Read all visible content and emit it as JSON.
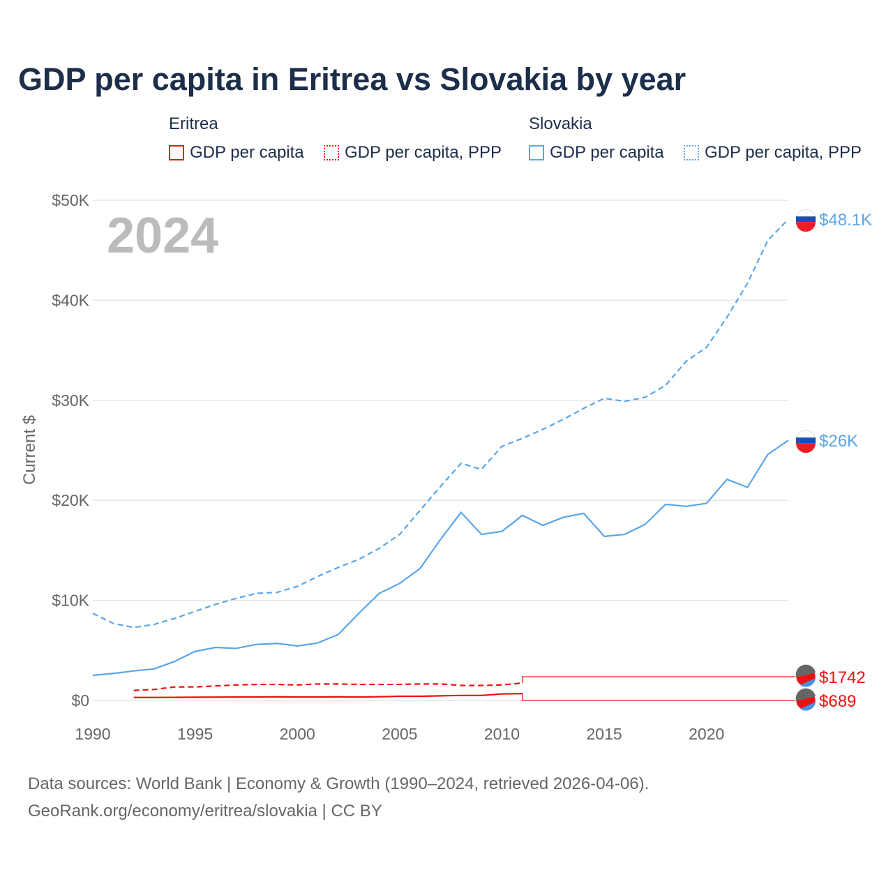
{
  "chart_data": {
    "type": "line",
    "title": "GDP per capita in Eritrea vs Slovakia by year",
    "ylabel": "Current $",
    "xlim": [
      1990,
      2024
    ],
    "ylim": [
      0,
      50000
    ],
    "xticks": [
      "1990",
      "1995",
      "2000",
      "2005",
      "2010",
      "2015",
      "2020"
    ],
    "yticks": [
      "$0",
      "$10K",
      "$20K",
      "$30K",
      "$40K",
      "$50K"
    ],
    "year_label": "2024",
    "legend": {
      "groups": [
        {
          "name": "Eritrea",
          "items": [
            "GDP per capita",
            "GDP per capita, PPP"
          ]
        },
        {
          "name": "Slovakia",
          "items": [
            "GDP per capita",
            "GDP per capita, PPP"
          ]
        }
      ]
    },
    "series": [
      {
        "name": "Slovakia GDP per capita",
        "color": "#5aa5e8",
        "dash": false,
        "start": 1990,
        "values": [
          2500,
          2700,
          2950,
          3150,
          3900,
          4900,
          5300,
          5200,
          5600,
          5700,
          5450,
          5750,
          6600,
          8700,
          10700,
          11700,
          13200,
          16100,
          18800,
          16600,
          16900,
          18500,
          17500,
          18300,
          18700,
          16400,
          16600,
          17600,
          19600,
          19400,
          19700,
          22100,
          21300,
          24600,
          26000
        ],
        "end_label": "$26K"
      },
      {
        "name": "Slovakia GDP per capita, PPP",
        "color": "#5aa5e8",
        "dash": true,
        "start": 1990,
        "values": [
          8700,
          7700,
          7300,
          7600,
          8200,
          8900,
          9600,
          10200,
          10700,
          10800,
          11400,
          12400,
          13300,
          14100,
          15200,
          16600,
          19000,
          21400,
          23700,
          23100,
          25400,
          26200,
          27100,
          28100,
          29200,
          30200,
          29900,
          30300,
          31500,
          33900,
          35300,
          38300,
          41700,
          46000,
          48100
        ],
        "end_label": "$48.1K"
      },
      {
        "name": "Eritrea GDP per capita",
        "color": "#ee1111",
        "dash": false,
        "start": 1992,
        "values": [
          300,
          300,
          310,
          320,
          330,
          340,
          350,
          360,
          350,
          350,
          360,
          340,
          370,
          420,
          420,
          460,
          500,
          500,
          650,
          689
        ],
        "end_label": "$689"
      },
      {
        "name": "Eritrea GDP per capita, PPP",
        "color": "#ee1111",
        "dash": true,
        "start": 1992,
        "values": [
          1000,
          1100,
          1350,
          1350,
          1450,
          1550,
          1600,
          1600,
          1550,
          1650,
          1650,
          1600,
          1600,
          1600,
          1650,
          1650,
          1500,
          1500,
          1550,
          1742
        ],
        "end_label": "$1742"
      }
    ]
  },
  "footer": {
    "line1": "Data sources: World Bank | Economy & Growth (1990–2024, retrieved 2026-04-06).",
    "line2": "GeoRank.org/economy/eritrea/slovakia | CC BY"
  }
}
